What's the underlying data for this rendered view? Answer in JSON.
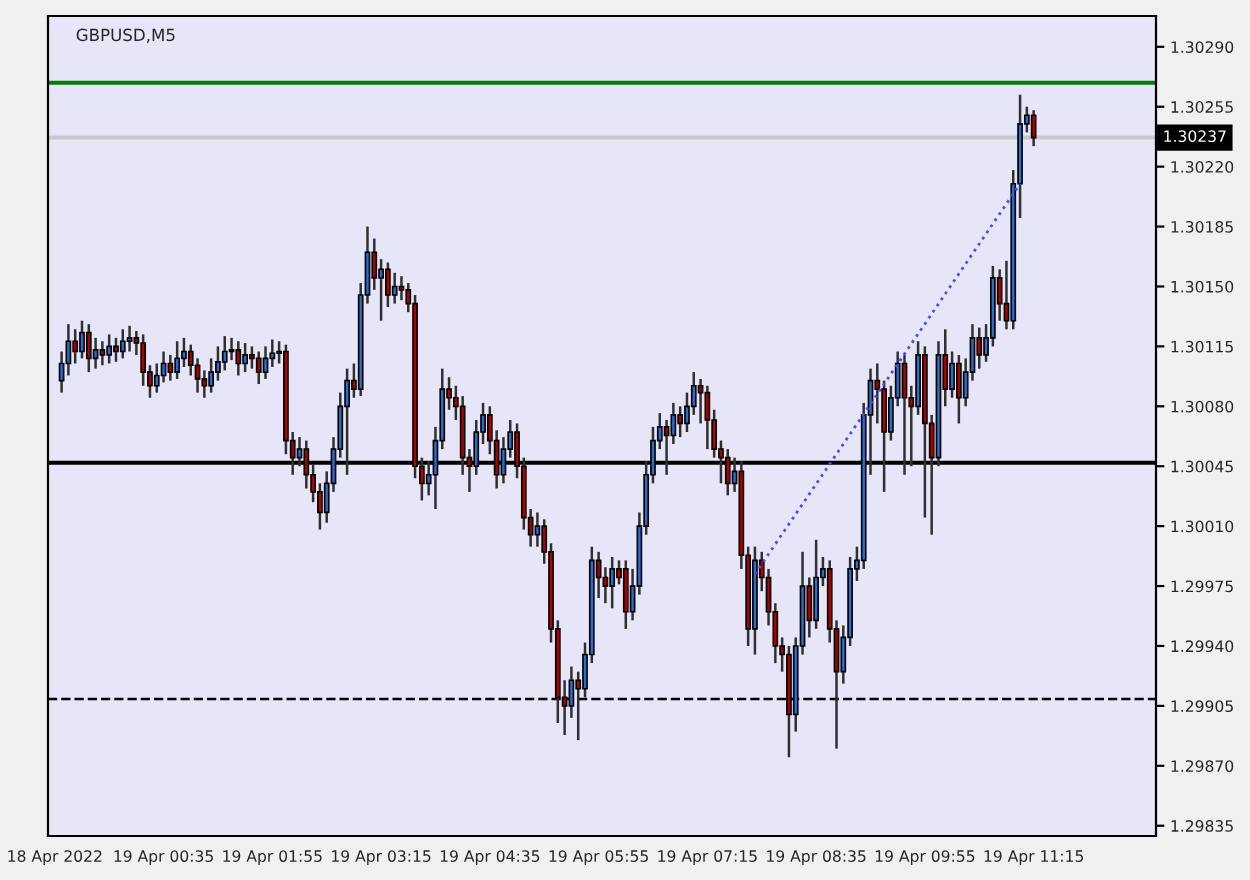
{
  "chart_data": {
    "type": "candlestick",
    "title": "GBPUSD,M5",
    "x": [
      "2022-04-18T23:20",
      "2022-04-18T23:25",
      "2022-04-18T23:30",
      "2022-04-18T23:35",
      "2022-04-18T23:40",
      "2022-04-18T23:45",
      "2022-04-18T23:50",
      "2022-04-18T23:55",
      "2022-04-19T00:00",
      "2022-04-19T00:05",
      "2022-04-19T00:10",
      "2022-04-19T00:15",
      "2022-04-19T00:20",
      "2022-04-19T00:25",
      "2022-04-19T00:30",
      "2022-04-19T00:35",
      "2022-04-19T00:40",
      "2022-04-19T00:45",
      "2022-04-19T00:50",
      "2022-04-19T00:55",
      "2022-04-19T01:00",
      "2022-04-19T01:05",
      "2022-04-19T01:10",
      "2022-04-19T01:15",
      "2022-04-19T01:20",
      "2022-04-19T01:25",
      "2022-04-19T01:30",
      "2022-04-19T01:35",
      "2022-04-19T01:40",
      "2022-04-19T01:45",
      "2022-04-19T01:50",
      "2022-04-19T01:55",
      "2022-04-19T02:00",
      "2022-04-19T02:05",
      "2022-04-19T02:10",
      "2022-04-19T02:15",
      "2022-04-19T02:20",
      "2022-04-19T02:25",
      "2022-04-19T02:30",
      "2022-04-19T02:35",
      "2022-04-19T02:40",
      "2022-04-19T02:45",
      "2022-04-19T02:50",
      "2022-04-19T02:55",
      "2022-04-19T03:00",
      "2022-04-19T03:05",
      "2022-04-19T03:10",
      "2022-04-19T03:15",
      "2022-04-19T03:20",
      "2022-04-19T03:25",
      "2022-04-19T03:30",
      "2022-04-19T03:35",
      "2022-04-19T03:40",
      "2022-04-19T03:45",
      "2022-04-19T03:50",
      "2022-04-19T03:55",
      "2022-04-19T04:00",
      "2022-04-19T04:05",
      "2022-04-19T04:10",
      "2022-04-19T04:15",
      "2022-04-19T04:20",
      "2022-04-19T04:25",
      "2022-04-19T04:30",
      "2022-04-19T04:35",
      "2022-04-19T04:40",
      "2022-04-19T04:45",
      "2022-04-19T04:50",
      "2022-04-19T04:55",
      "2022-04-19T05:00",
      "2022-04-19T05:05",
      "2022-04-19T05:10",
      "2022-04-19T05:15",
      "2022-04-19T05:20",
      "2022-04-19T05:25",
      "2022-04-19T05:30",
      "2022-04-19T05:35",
      "2022-04-19T05:40",
      "2022-04-19T05:45",
      "2022-04-19T05:50",
      "2022-04-19T05:55",
      "2022-04-19T06:00",
      "2022-04-19T06:05",
      "2022-04-19T06:10",
      "2022-04-19T06:15",
      "2022-04-19T06:20",
      "2022-04-19T06:25",
      "2022-04-19T06:30",
      "2022-04-19T06:35",
      "2022-04-19T06:40",
      "2022-04-19T06:45",
      "2022-04-19T06:50",
      "2022-04-19T06:55",
      "2022-04-19T07:00",
      "2022-04-19T07:05",
      "2022-04-19T07:10",
      "2022-04-19T07:15",
      "2022-04-19T07:20",
      "2022-04-19T07:25",
      "2022-04-19T07:30",
      "2022-04-19T07:35",
      "2022-04-19T07:40",
      "2022-04-19T07:45",
      "2022-04-19T07:50",
      "2022-04-19T07:55",
      "2022-04-19T08:00",
      "2022-04-19T08:05",
      "2022-04-19T08:10",
      "2022-04-19T08:15",
      "2022-04-19T08:20",
      "2022-04-19T08:25",
      "2022-04-19T08:30",
      "2022-04-19T08:35",
      "2022-04-19T08:40",
      "2022-04-19T08:45",
      "2022-04-19T08:50",
      "2022-04-19T08:55",
      "2022-04-19T09:00",
      "2022-04-19T09:05",
      "2022-04-19T09:10",
      "2022-04-19T09:15",
      "2022-04-19T09:20",
      "2022-04-19T09:25",
      "2022-04-19T09:30",
      "2022-04-19T09:35",
      "2022-04-19T09:40",
      "2022-04-19T09:45",
      "2022-04-19T09:50",
      "2022-04-19T09:55",
      "2022-04-19T10:00",
      "2022-04-19T10:05",
      "2022-04-19T10:10",
      "2022-04-19T10:15",
      "2022-04-19T10:20",
      "2022-04-19T10:25",
      "2022-04-19T10:30",
      "2022-04-19T10:35",
      "2022-04-19T10:40",
      "2022-04-19T10:45",
      "2022-04-19T10:50",
      "2022-04-19T10:55",
      "2022-04-19T11:00",
      "2022-04-19T11:05",
      "2022-04-19T11:10",
      "2022-04-19T11:15"
    ],
    "ohlc": [
      [
        1.30095,
        1.30112,
        1.30088,
        1.30105
      ],
      [
        1.30105,
        1.30128,
        1.30098,
        1.30118
      ],
      [
        1.30118,
        1.30125,
        1.30105,
        1.30112
      ],
      [
        1.30112,
        1.3013,
        1.30108,
        1.30123
      ],
      [
        1.30123,
        1.30128,
        1.301,
        1.30108
      ],
      [
        1.30108,
        1.3012,
        1.30102,
        1.30113
      ],
      [
        1.30113,
        1.30118,
        1.30104,
        1.3011
      ],
      [
        1.3011,
        1.30122,
        1.30105,
        1.30115
      ],
      [
        1.30115,
        1.3012,
        1.30106,
        1.30112
      ],
      [
        1.30112,
        1.30125,
        1.30108,
        1.30118
      ],
      [
        1.30118,
        1.30127,
        1.30112,
        1.3012
      ],
      [
        1.3012,
        1.30124,
        1.3011,
        1.30117
      ],
      [
        1.30117,
        1.30122,
        1.30092,
        1.301
      ],
      [
        1.301,
        1.30104,
        1.30085,
        1.30092
      ],
      [
        1.30092,
        1.30105,
        1.30088,
        1.30098
      ],
      [
        1.30098,
        1.30112,
        1.30094,
        1.30105
      ],
      [
        1.30105,
        1.3011,
        1.30095,
        1.301
      ],
      [
        1.301,
        1.30118,
        1.30096,
        1.30108
      ],
      [
        1.30108,
        1.3012,
        1.30103,
        1.30112
      ],
      [
        1.30112,
        1.30116,
        1.30098,
        1.30104
      ],
      [
        1.30104,
        1.30108,
        1.30088,
        1.30096
      ],
      [
        1.30096,
        1.30101,
        1.30085,
        1.30092
      ],
      [
        1.30092,
        1.30108,
        1.30088,
        1.301
      ],
      [
        1.301,
        1.30115,
        1.30095,
        1.30106
      ],
      [
        1.30106,
        1.30121,
        1.30101,
        1.30112
      ],
      [
        1.30112,
        1.3012,
        1.30107,
        1.30113
      ],
      [
        1.30113,
        1.30118,
        1.30098,
        1.30105
      ],
      [
        1.30105,
        1.30117,
        1.301,
        1.3011
      ],
      [
        1.3011,
        1.30115,
        1.30102,
        1.30108
      ],
      [
        1.30108,
        1.30112,
        1.30093,
        1.301
      ],
      [
        1.301,
        1.30115,
        1.30096,
        1.30108
      ],
      [
        1.30108,
        1.30119,
        1.30103,
        1.30111
      ],
      [
        1.30111,
        1.30118,
        1.30105,
        1.30112
      ],
      [
        1.30112,
        1.30116,
        1.30052,
        1.3006
      ],
      [
        1.3006,
        1.30065,
        1.3004,
        1.3005
      ],
      [
        1.3005,
        1.30062,
        1.30045,
        1.30055
      ],
      [
        1.30055,
        1.3006,
        1.30032,
        1.3004
      ],
      [
        1.3004,
        1.30046,
        1.30024,
        1.3003
      ],
      [
        1.3003,
        1.30035,
        1.30008,
        1.30018
      ],
      [
        1.30018,
        1.30042,
        1.30012,
        1.30035
      ],
      [
        1.30035,
        1.30062,
        1.3003,
        1.30055
      ],
      [
        1.30055,
        1.30088,
        1.3005,
        1.3008
      ],
      [
        1.3008,
        1.30102,
        1.3004,
        1.30095
      ],
      [
        1.30095,
        1.30105,
        1.30085,
        1.3009
      ],
      [
        1.3009,
        1.30152,
        1.30086,
        1.30145
      ],
      [
        1.30145,
        1.30185,
        1.3014,
        1.3017
      ],
      [
        1.3017,
        1.30178,
        1.30148,
        1.30155
      ],
      [
        1.30155,
        1.30166,
        1.3013,
        1.3016
      ],
      [
        1.3016,
        1.30164,
        1.30138,
        1.30145
      ],
      [
        1.30145,
        1.30158,
        1.3014,
        1.3015
      ],
      [
        1.3015,
        1.30156,
        1.30142,
        1.30148
      ],
      [
        1.30148,
        1.30152,
        1.30135,
        1.3014
      ],
      [
        1.3014,
        1.30145,
        1.30038,
        1.30045
      ],
      [
        1.30045,
        1.3005,
        1.30025,
        1.30035
      ],
      [
        1.30035,
        1.30048,
        1.30028,
        1.3004
      ],
      [
        1.3004,
        1.30068,
        1.3002,
        1.3006
      ],
      [
        1.3006,
        1.30102,
        1.30055,
        1.3009
      ],
      [
        1.3009,
        1.30097,
        1.30078,
        1.30085
      ],
      [
        1.30085,
        1.30092,
        1.30072,
        1.3008
      ],
      [
        1.3008,
        1.30086,
        1.3004,
        1.3005
      ],
      [
        1.3005,
        1.30055,
        1.3003,
        1.30045
      ],
      [
        1.30045,
        1.30072,
        1.3004,
        1.30065
      ],
      [
        1.30065,
        1.30082,
        1.30058,
        1.30075
      ],
      [
        1.30075,
        1.3008,
        1.30052,
        1.3006
      ],
      [
        1.3006,
        1.30066,
        1.30032,
        1.3004
      ],
      [
        1.3004,
        1.30062,
        1.30035,
        1.30055
      ],
      [
        1.30055,
        1.30072,
        1.3005,
        1.30065
      ],
      [
        1.30065,
        1.3007,
        1.30038,
        1.30045
      ],
      [
        1.30045,
        1.3005,
        1.30008,
        1.30015
      ],
      [
        1.30015,
        1.3002,
        1.29998,
        1.30005
      ],
      [
        1.30005,
        1.30018,
        1.29998,
        1.3001
      ],
      [
        1.3001,
        1.30014,
        1.29988,
        1.29995
      ],
      [
        1.29995,
        1.3,
        1.29942,
        1.2995
      ],
      [
        1.2995,
        1.29955,
        1.29895,
        1.2991
      ],
      [
        1.2991,
        1.2992,
        1.29888,
        1.29905
      ],
      [
        1.29905,
        1.29928,
        1.29898,
        1.2992
      ],
      [
        1.2992,
        1.29925,
        1.29885,
        1.29915
      ],
      [
        1.29915,
        1.29942,
        1.2991,
        1.29935
      ],
      [
        1.29935,
        1.29998,
        1.2993,
        1.2999
      ],
      [
        1.2999,
        1.29995,
        1.29968,
        1.2998
      ],
      [
        1.2998,
        1.29986,
        1.29965,
        1.29975
      ],
      [
        1.29975,
        1.29992,
        1.29962,
        1.29985
      ],
      [
        1.29985,
        1.2999,
        1.29976,
        1.2998
      ],
      [
        1.29985,
        1.2999,
        1.2995,
        1.2996
      ],
      [
        1.2996,
        1.29985,
        1.29955,
        1.29975
      ],
      [
        1.29975,
        1.30018,
        1.2997,
        1.3001
      ],
      [
        1.3001,
        1.30048,
        1.30005,
        1.3004
      ],
      [
        1.3004,
        1.30068,
        1.30035,
        1.3006
      ],
      [
        1.3006,
        1.30076,
        1.30055,
        1.30068
      ],
      [
        1.30068,
        1.30072,
        1.3004,
        1.30063
      ],
      [
        1.30063,
        1.30082,
        1.30058,
        1.30075
      ],
      [
        1.30075,
        1.3008,
        1.30062,
        1.3007
      ],
      [
        1.3007,
        1.30088,
        1.30065,
        1.3008
      ],
      [
        1.3008,
        1.301,
        1.30075,
        1.30092
      ],
      [
        1.30092,
        1.30096,
        1.3007,
        1.30088
      ],
      [
        1.30088,
        1.30092,
        1.30055,
        1.30072
      ],
      [
        1.30072,
        1.30078,
        1.3005,
        1.30055
      ],
      [
        1.30055,
        1.3006,
        1.30035,
        1.3005
      ],
      [
        1.3005,
        1.30055,
        1.30028,
        1.30035
      ],
      [
        1.30035,
        1.3005,
        1.3003,
        1.30042
      ],
      [
        1.30042,
        1.30048,
        1.29985,
        1.29993
      ],
      [
        1.29993,
        1.29998,
        1.2994,
        1.2995
      ],
      [
        1.2995,
        1.29998,
        1.29935,
        1.2999
      ],
      [
        1.2999,
        1.29995,
        1.29972,
        1.2998
      ],
      [
        1.2998,
        1.29985,
        1.29952,
        1.2996
      ],
      [
        1.2996,
        1.29965,
        1.2993,
        1.2994
      ],
      [
        1.2994,
        1.29945,
        1.29925,
        1.29935
      ],
      [
        1.29935,
        1.2994,
        1.29875,
        1.299
      ],
      [
        1.299,
        1.29945,
        1.2989,
        1.2994
      ],
      [
        1.2994,
        1.29995,
        1.29935,
        1.29975
      ],
      [
        1.29975,
        1.2998,
        1.29945,
        1.29955
      ],
      [
        1.29955,
        1.30002,
        1.2995,
        1.2998
      ],
      [
        1.2998,
        1.29992,
        1.29975,
        1.29985
      ],
      [
        1.29985,
        1.2999,
        1.29942,
        1.2995
      ],
      [
        1.2995,
        1.29955,
        1.2988,
        1.29925
      ],
      [
        1.29925,
        1.29952,
        1.29918,
        1.29945
      ],
      [
        1.29945,
        1.29992,
        1.2994,
        1.29985
      ],
      [
        1.29985,
        1.29998,
        1.29978,
        1.2999
      ],
      [
        1.2999,
        1.30082,
        1.29985,
        1.30075
      ],
      [
        1.30075,
        1.30102,
        1.3004,
        1.30095
      ],
      [
        1.30095,
        1.30105,
        1.3007,
        1.3009
      ],
      [
        1.3009,
        1.30095,
        1.3003,
        1.30065
      ],
      [
        1.30065,
        1.30092,
        1.3006,
        1.30085
      ],
      [
        1.30085,
        1.30112,
        1.3008,
        1.30105
      ],
      [
        1.30105,
        1.3011,
        1.3004,
        1.30085
      ],
      [
        1.30085,
        1.30092,
        1.30045,
        1.3008
      ],
      [
        1.3008,
        1.30118,
        1.30075,
        1.3011
      ],
      [
        1.3011,
        1.30115,
        1.30015,
        1.3007
      ],
      [
        1.3007,
        1.30075,
        1.30005,
        1.3005
      ],
      [
        1.3005,
        1.30118,
        1.30045,
        1.3011
      ],
      [
        1.3011,
        1.30125,
        1.3008,
        1.3009
      ],
      [
        1.3009,
        1.30112,
        1.30085,
        1.30105
      ],
      [
        1.30105,
        1.3011,
        1.3007,
        1.30085
      ],
      [
        1.30085,
        1.30108,
        1.3008,
        1.301
      ],
      [
        1.301,
        1.30128,
        1.30095,
        1.3012
      ],
      [
        1.3012,
        1.30126,
        1.30102,
        1.3011
      ],
      [
        1.3011,
        1.30128,
        1.30106,
        1.3012
      ],
      [
        1.3012,
        1.30162,
        1.30115,
        1.30155
      ],
      [
        1.30155,
        1.3016,
        1.3013,
        1.3014
      ],
      [
        1.3014,
        1.30165,
        1.30125,
        1.3013
      ],
      [
        1.3013,
        1.30218,
        1.30125,
        1.3021
      ],
      [
        1.3021,
        1.30262,
        1.3019,
        1.30245
      ],
      [
        1.30245,
        1.30255,
        1.3024,
        1.3025
      ],
      [
        1.3025,
        1.30253,
        1.30232,
        1.30237
      ]
    ],
    "colors": [
      "#2a6fce",
      "#2a6fce",
      "#b00000",
      "#2a6fce",
      "#b00000",
      "#2a6fce",
      "#b00000",
      "#2a6fce",
      "#b00000",
      "#2a6fce",
      "#2a6fce",
      "#b00000",
      "#b00000",
      "#b00000",
      "#2a6fce",
      "#2a6fce",
      "#b00000",
      "#2a6fce",
      "#2a6fce",
      "#b00000",
      "#b00000",
      "#b00000",
      "#2a6fce",
      "#2a6fce",
      "#2a6fce",
      "#2a6fce",
      "#b00000",
      "#2a6fce",
      "#b00000",
      "#b00000",
      "#2a6fce",
      "#2a6fce",
      "#2a6fce",
      "#b00000",
      "#b00000",
      "#2a6fce",
      "#b00000",
      "#b00000",
      "#b00000",
      "#2a6fce",
      "#2a6fce",
      "#2a6fce",
      "#2a6fce",
      "#b00000",
      "#2a6fce",
      "#2a6fce",
      "#b00000",
      "#2a6fce",
      "#b00000",
      "#2a6fce",
      "#b00000",
      "#b00000",
      "#b00000",
      "#b00000",
      "#2a6fce",
      "#2a6fce",
      "#2a6fce",
      "#b00000",
      "#b00000",
      "#b00000",
      "#b00000",
      "#2a6fce",
      "#2a6fce",
      "#b00000",
      "#b00000",
      "#2a6fce",
      "#2a6fce",
      "#b00000",
      "#b00000",
      "#b00000",
      "#2a6fce",
      "#b00000",
      "#b00000",
      "#b00000",
      "#b00000",
      "#2a6fce",
      "#b00000",
      "#2a6fce",
      "#2a6fce",
      "#b00000",
      "#b00000",
      "#2a6fce",
      "#b00000",
      "#b00000",
      "#2a6fce",
      "#2a6fce",
      "#2a6fce",
      "#2a6fce",
      "#2a6fce",
      "#b00000",
      "#2a6fce",
      "#b00000",
      "#2a6fce",
      "#2a6fce",
      "#b00000",
      "#b00000",
      "#b00000",
      "#b00000",
      "#b00000",
      "#2a6fce",
      "#b00000",
      "#b00000",
      "#2a6fce",
      "#b00000",
      "#b00000",
      "#b00000",
      "#b00000",
      "#b00000",
      "#2a6fce",
      "#2a6fce",
      "#b00000",
      "#2a6fce",
      "#2a6fce",
      "#b00000",
      "#b00000",
      "#2a6fce",
      "#2a6fce",
      "#2a6fce",
      "#2a6fce",
      "#2a6fce",
      "#b00000",
      "#b00000",
      "#2a6fce",
      "#2a6fce",
      "#b00000",
      "#b00000",
      "#2a6fce",
      "#b00000",
      "#b00000",
      "#2a6fce",
      "#b00000",
      "#2a6fce",
      "#b00000",
      "#2a6fce",
      "#2a6fce",
      "#b00000",
      "#2a6fce",
      "#2a6fce",
      "#b00000",
      "#b00000",
      "#2a6fce",
      "#2a6fce",
      "#2a6fce",
      "#b00000"
    ],
    "series": [
      {
        "type": "line",
        "x": [
          "2022-04-19T07:50",
          "2022-04-19T11:05"
        ],
        "values": [
          1.29982,
          1.3021
        ],
        "color": "#4a4aff",
        "line_style": "dotted"
      }
    ],
    "ref_lines": [
      {
        "axis": "y",
        "value": 1.30047,
        "color": "#000000",
        "line_style": "solid"
      },
      {
        "axis": "y",
        "value": 1.29909,
        "color": "#000000",
        "line_style": "dashed"
      },
      {
        "axis": "y",
        "value": 1.30269,
        "color": "#008000",
        "line_style": "solid"
      },
      {
        "axis": "y",
        "value": 1.30237,
        "color": "#c8c8c8",
        "line_style": "solid",
        "label": "1.30237"
      }
    ],
    "xlim": [
      "2022-04-18T23:10",
      "2022-04-19T12:45"
    ],
    "xticks": [
      {
        "value": "2022-04-18T23:15",
        "label": "18 Apr 2022"
      },
      {
        "value": "2022-04-19T00:35",
        "label": "19 Apr 00:35"
      },
      {
        "value": "2022-04-19T01:55",
        "label": "19 Apr 01:55"
      },
      {
        "value": "2022-04-19T03:15",
        "label": "19 Apr 03:15"
      },
      {
        "value": "2022-04-19T04:35",
        "label": "19 Apr 04:35"
      },
      {
        "value": "2022-04-19T05:55",
        "label": "19 Apr 05:55"
      },
      {
        "value": "2022-04-19T07:15",
        "label": "19 Apr 07:15"
      },
      {
        "value": "2022-04-19T08:35",
        "label": "19 Apr 08:35"
      },
      {
        "value": "2022-04-19T09:55",
        "label": "19 Apr 09:55"
      },
      {
        "value": "2022-04-19T11:15",
        "label": "19 Apr 11:15"
      }
    ],
    "ylim": [
      1.29829,
      1.30308
    ],
    "yticks": [
      {
        "value": 1.3029,
        "label": "1.30290"
      },
      {
        "value": 1.30255,
        "label": "1.30255"
      },
      {
        "value": 1.3022,
        "label": "1.30220"
      },
      {
        "value": 1.30185,
        "label": "1.30185"
      },
      {
        "value": 1.3015,
        "label": "1.30150"
      },
      {
        "value": 1.30115,
        "label": "1.30115"
      },
      {
        "value": 1.3008,
        "label": "1.30080"
      },
      {
        "value": 1.30045,
        "label": "1.30045"
      },
      {
        "value": 1.3001,
        "label": "1.30010"
      },
      {
        "value": 1.29975,
        "label": "1.29975"
      },
      {
        "value": 1.2994,
        "label": "1.29940"
      },
      {
        "value": 1.29905,
        "label": "1.29905"
      },
      {
        "value": 1.2987,
        "label": "1.29870"
      },
      {
        "value": 1.29835,
        "label": "1.29835"
      }
    ],
    "grid": false
  }
}
